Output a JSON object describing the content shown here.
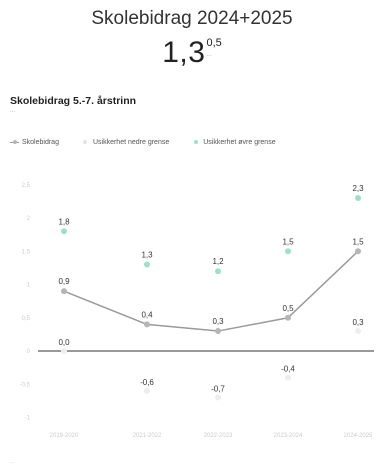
{
  "header": {
    "title": "Skolebidrag 2024+2025",
    "value": "1,3",
    "value_sup": "0,5",
    "value_sub": "..."
  },
  "section": {
    "title": "Skolebidrag 5.-7. årstrinn",
    "subtitle": "..."
  },
  "footer": "...",
  "colors": {
    "main_series": "#9a9a9a",
    "main_marker": "#b5b5b5",
    "band_markers": "#9fe0cc",
    "zero_line": "#333333"
  },
  "chart_data": {
    "type": "line",
    "title": "",
    "xlabel": "",
    "ylabel": "",
    "categories": [
      "2019-2020",
      "2021-2022",
      "2022-2023",
      "2023-2024",
      "2024-2025"
    ],
    "ylim": [
      -2.0,
      2.5
    ],
    "yticks": [
      "2,5",
      "2",
      "1,5",
      "1",
      "0,5",
      "0",
      "-0,5",
      "-1"
    ],
    "grid": false,
    "legend_position": "top-left",
    "series": [
      {
        "name": "Skolebidrag",
        "values": [
          0.9,
          0.4,
          0.3,
          0.5,
          1.5
        ],
        "labels": [
          "0,9",
          "0,4",
          "0,3",
          "0,5",
          "1,5"
        ]
      },
      {
        "name": "Usikkerhet nedre grense",
        "values": [
          0.0,
          -0.6,
          -0.7,
          -0.4,
          0.3
        ],
        "labels": [
          "0,0",
          "-0,6",
          "-0,7",
          "-0,4",
          "0,3"
        ]
      },
      {
        "name": "Usikkerhet øvre grense",
        "values": [
          1.8,
          1.3,
          1.2,
          1.5,
          2.3
        ],
        "labels": [
          "1,8",
          "1,3",
          "1,2",
          "1,5",
          "2,3"
        ]
      }
    ]
  }
}
